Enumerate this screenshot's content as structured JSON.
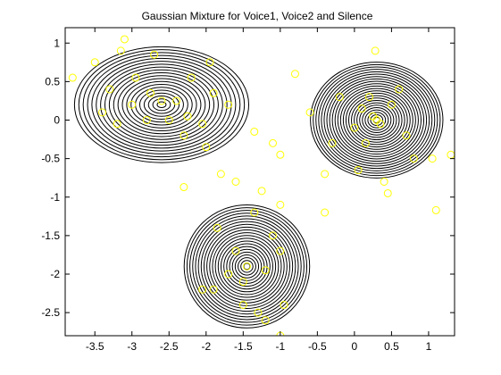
{
  "figure": {
    "title": "Gaussian Mixture for Voice1, Voice2 and Silence"
  },
  "chart_data": {
    "type": "scatter",
    "title": "Gaussian Mixture for Voice1, Voice2 and Silence",
    "xlabel": "",
    "ylabel": "",
    "xlim": [
      -3.9,
      1.35
    ],
    "ylim": [
      -2.8,
      1.2
    ],
    "xticks": [
      -3.5,
      -3,
      -2.5,
      -2,
      -1.5,
      -1,
      -0.5,
      0,
      0.5,
      1
    ],
    "xtick_labels": [
      "-3.5",
      "-3",
      "-2.5",
      "-2",
      "-1.5",
      "-1",
      "-0.5",
      "0",
      "0.5",
      "1"
    ],
    "yticks": [
      1,
      0.5,
      0,
      -0.5,
      -1,
      -1.5,
      -2,
      -2.5
    ],
    "ytick_labels": [
      "1",
      "0.5",
      "0",
      "-0.5",
      "-1",
      "-1.5",
      "-2",
      "-2.5"
    ],
    "grid": false,
    "marker_color": "#ffff00",
    "contour_color": "#000000",
    "components": [
      {
        "mean": [
          -2.6,
          0.2
        ],
        "sd": [
          0.5,
          0.32
        ],
        "contour_levels": 20
      },
      {
        "mean": [
          0.3,
          0.0
        ],
        "sd": [
          0.38,
          0.32
        ],
        "contour_levels": 24
      },
      {
        "mean": [
          -1.45,
          -1.9
        ],
        "sd": [
          0.36,
          0.34
        ],
        "contour_levels": 22
      }
    ],
    "series": [
      {
        "marker": "circle",
        "color": "#ffff00",
        "points": [
          [
            -2.6,
            0.25
          ],
          [
            -2.95,
            0.55
          ],
          [
            -3.3,
            0.4
          ],
          [
            -3.1,
            1.05
          ],
          [
            -3.8,
            0.55
          ],
          [
            -2.2,
            0.55
          ],
          [
            -1.9,
            0.35
          ],
          [
            -1.7,
            0.2
          ],
          [
            -2.05,
            -0.05
          ],
          [
            -2.3,
            -0.2
          ],
          [
            -2.0,
            -0.35
          ],
          [
            -3.15,
            0.9
          ],
          [
            -2.8,
            0.0
          ],
          [
            -2.5,
            0.0
          ],
          [
            -3.4,
            0.1
          ],
          [
            -2.75,
            0.35
          ],
          [
            -2.4,
            0.25
          ],
          [
            -3.0,
            0.2
          ],
          [
            -3.2,
            -0.05
          ],
          [
            -2.25,
            0.05
          ],
          [
            -1.95,
            0.75
          ],
          [
            -2.7,
            0.85
          ],
          [
            -3.5,
            0.75
          ],
          [
            -1.35,
            -0.15
          ],
          [
            -2.3,
            -0.87
          ],
          [
            0.3,
            0.0
          ],
          [
            0.28,
            0.9
          ],
          [
            0.25,
            0.05
          ],
          [
            0.35,
            -0.05
          ],
          [
            0.1,
            0.15
          ],
          [
            0.5,
            0.2
          ],
          [
            0.0,
            -0.1
          ],
          [
            -0.2,
            0.3
          ],
          [
            0.7,
            -0.2
          ],
          [
            0.6,
            0.4
          ],
          [
            -0.6,
            0.1
          ],
          [
            0.05,
            -0.65
          ],
          [
            0.4,
            -0.8
          ],
          [
            -0.3,
            -0.3
          ],
          [
            0.8,
            -0.5
          ],
          [
            1.05,
            -0.5
          ],
          [
            1.3,
            -0.45
          ],
          [
            -0.8,
            0.6
          ],
          [
            0.45,
            -0.95
          ],
          [
            -0.4,
            -0.7
          ],
          [
            0.2,
            0.3
          ],
          [
            0.15,
            -0.3
          ],
          [
            -1.1,
            -0.3
          ],
          [
            -1.0,
            -0.45
          ],
          [
            -0.4,
            -1.2
          ],
          [
            1.1,
            -1.17
          ],
          [
            -1.45,
            -1.9
          ],
          [
            -1.8,
            -0.7
          ],
          [
            -1.6,
            -0.8
          ],
          [
            -1.25,
            -0.92
          ],
          [
            -1.0,
            -1.1
          ],
          [
            -1.85,
            -1.4
          ],
          [
            -1.1,
            -1.5
          ],
          [
            -1.5,
            -2.1
          ],
          [
            -1.9,
            -2.2
          ],
          [
            -1.3,
            -2.5
          ],
          [
            -1.2,
            -2.6
          ],
          [
            -1.6,
            -1.7
          ],
          [
            -1.7,
            -2.0
          ],
          [
            -1.2,
            -1.95
          ],
          [
            -2.05,
            -2.2
          ],
          [
            -0.95,
            -2.4
          ],
          [
            -1.0,
            -1.7
          ],
          [
            -1.5,
            -2.4
          ],
          [
            -1.35,
            -1.2
          ],
          [
            -1.0,
            -2.8
          ]
        ]
      }
    ]
  }
}
